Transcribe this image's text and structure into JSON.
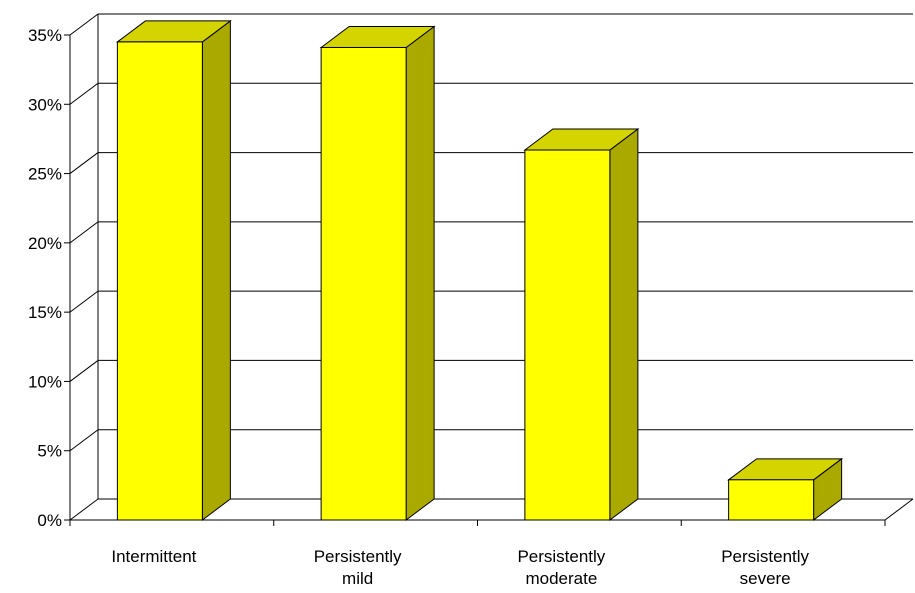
{
  "chart_data": {
    "type": "bar",
    "categories": [
      [
        "Intermittent"
      ],
      [
        "Persistently",
        "mild"
      ],
      [
        "Persistently",
        "moderate"
      ],
      [
        "Persistently",
        "severe"
      ]
    ],
    "values": [
      34.5,
      34.1,
      26.7,
      2.9
    ],
    "ylim": [
      0,
      35
    ],
    "yticks": [
      "0%",
      "5%",
      "10%",
      "15%",
      "20%",
      "25%",
      "30%",
      "35%"
    ],
    "grid": true,
    "legend": "none",
    "title": "",
    "xlabel": "",
    "ylabel": "",
    "colors": {
      "bar_front": "#FFFF00",
      "bar_side": "#A9A900",
      "bar_top": "#D4D400"
    }
  }
}
